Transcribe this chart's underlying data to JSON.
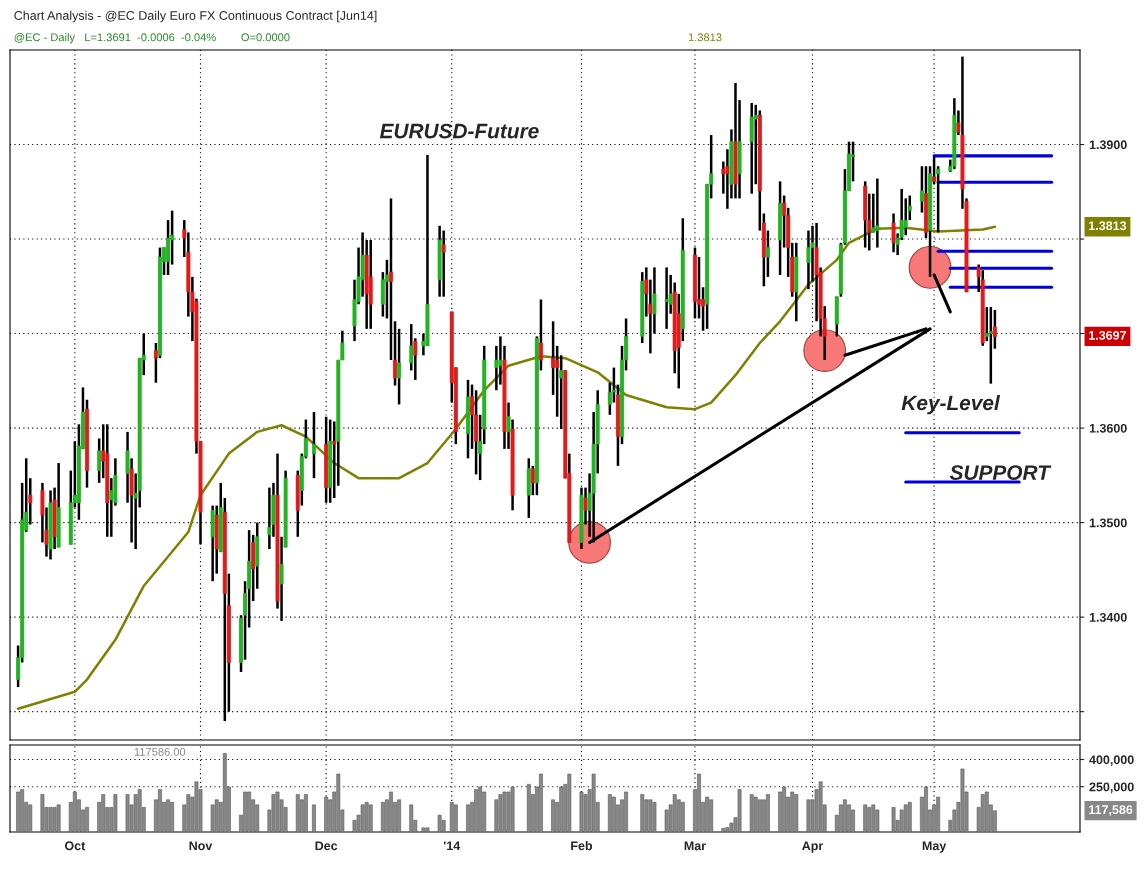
{
  "chart_data": [
    {
      "type": "candlestick",
      "title": "Chart Analysis - @EC Daily Euro FX Continuous Contract [Jun14]",
      "subtitle": "@EC - Daily   L=1.3691  -0.0006  -0.04%        O=0.0000",
      "x": [
        "2013-09-17",
        "2013-09-18",
        "2013-09-19",
        "2013-09-20",
        "2013-09-23",
        "2013-09-24",
        "2013-09-25",
        "2013-09-26",
        "2013-09-27",
        "2013-09-30",
        "2013-10-01",
        "2013-10-02",
        "2013-10-03",
        "2013-10-04",
        "2013-10-07",
        "2013-10-08",
        "2013-10-09",
        "2013-10-10",
        "2013-10-11",
        "2013-10-14",
        "2013-10-15",
        "2013-10-16",
        "2013-10-17",
        "2013-10-18",
        "2013-10-21",
        "2013-10-22",
        "2013-10-23",
        "2013-10-24",
        "2013-10-25",
        "2013-10-28",
        "2013-10-29",
        "2013-10-30",
        "2013-10-31",
        "2013-11-01",
        "2013-11-04",
        "2013-11-05",
        "2013-11-06",
        "2013-11-07",
        "2013-11-08",
        "2013-11-11",
        "2013-11-12",
        "2013-11-13",
        "2013-11-14",
        "2013-11-15",
        "2013-11-18",
        "2013-11-19",
        "2013-11-20",
        "2013-11-21",
        "2013-11-22",
        "2013-11-25",
        "2013-11-26",
        "2013-11-27",
        "2013-11-29",
        "2013-12-02",
        "2013-12-03",
        "2013-12-04",
        "2013-12-05",
        "2013-12-06",
        "2013-12-09",
        "2013-12-10",
        "2013-12-11",
        "2013-12-12",
        "2013-12-13",
        "2013-12-16",
        "2013-12-17",
        "2013-12-18",
        "2013-12-19",
        "2013-12-20",
        "2013-12-23",
        "2013-12-24",
        "2013-12-26",
        "2013-12-27",
        "2013-12-30",
        "2013-12-31",
        "2014-01-02",
        "2014-01-03",
        "2014-01-06",
        "2014-01-07",
        "2014-01-08",
        "2014-01-09",
        "2014-01-10",
        "2014-01-13",
        "2014-01-14",
        "2014-01-15",
        "2014-01-16",
        "2014-01-17",
        "2014-01-21",
        "2014-01-22",
        "2014-01-23",
        "2014-01-24",
        "2014-01-27",
        "2014-01-28",
        "2014-01-29",
        "2014-01-30",
        "2014-01-31",
        "2014-02-03",
        "2014-02-04",
        "2014-02-05",
        "2014-02-06",
        "2014-02-07",
        "2014-02-10",
        "2014-02-11",
        "2014-02-12",
        "2014-02-13",
        "2014-02-14",
        "2014-02-18",
        "2014-02-19",
        "2014-02-20",
        "2014-02-21",
        "2014-02-24",
        "2014-02-25",
        "2014-02-26",
        "2014-02-27",
        "2014-02-28",
        "2014-03-03",
        "2014-03-04",
        "2014-03-05",
        "2014-03-06",
        "2014-03-07",
        "2014-03-10",
        "2014-03-11",
        "2014-03-12",
        "2014-03-13",
        "2014-03-14",
        "2014-03-17",
        "2014-03-18",
        "2014-03-19",
        "2014-03-20",
        "2014-03-21",
        "2014-03-24",
        "2014-03-25",
        "2014-03-26",
        "2014-03-27",
        "2014-03-28",
        "2014-03-31",
        "2014-04-01",
        "2014-04-02",
        "2014-04-03",
        "2014-04-04",
        "2014-04-07",
        "2014-04-08",
        "2014-04-09",
        "2014-04-10",
        "2014-04-11",
        "2014-04-14",
        "2014-04-15",
        "2014-04-16",
        "2014-04-17",
        "2014-04-21",
        "2014-04-22",
        "2014-04-23",
        "2014-04-24",
        "2014-04-25",
        "2014-04-28",
        "2014-04-29",
        "2014-04-30",
        "2014-05-01",
        "2014-05-02",
        "2014-05-05",
        "2014-05-06",
        "2014-05-07",
        "2014-05-08",
        "2014-05-09",
        "2014-05-12",
        "2014-05-13",
        "2014-05-14",
        "2014-05-15",
        "2014-05-16"
      ],
      "ohlc": [
        [
          1.3334,
          1.337,
          1.3326,
          1.3357
        ],
        [
          1.3357,
          1.3542,
          1.3352,
          1.3503
        ],
        [
          1.3492,
          1.3568,
          1.349,
          1.3511
        ],
        [
          1.3529,
          1.3547,
          1.3498,
          1.3521
        ],
        [
          1.3534,
          1.3542,
          1.3479,
          1.3508
        ],
        [
          1.3492,
          1.3516,
          1.3464,
          1.3477
        ],
        [
          1.3472,
          1.3534,
          1.3461,
          1.3521
        ],
        [
          1.3524,
          1.3537,
          1.3472,
          1.3485
        ],
        [
          1.3474,
          1.3563,
          1.3474,
          1.3516
        ],
        [
          1.3477,
          1.3555,
          1.3477,
          1.3521
        ],
        [
          1.3521,
          1.3586,
          1.3516,
          1.3529
        ],
        [
          1.3521,
          1.3604,
          1.3503,
          1.3581
        ],
        [
          1.3578,
          1.3643,
          1.3578,
          1.3617
        ],
        [
          1.362,
          1.363,
          1.3537,
          1.3555
        ],
        [
          1.3555,
          1.3589,
          1.3542,
          1.3576
        ],
        [
          1.3576,
          1.3604,
          1.3547,
          1.3565
        ],
        [
          1.3573,
          1.3604,
          1.3485,
          1.3521
        ],
        [
          1.3524,
          1.3547,
          1.3485,
          1.3534
        ],
        [
          1.3521,
          1.3568,
          1.3518,
          1.355
        ],
        [
          1.3552,
          1.3596,
          1.3521,
          1.3576
        ],
        [
          1.3557,
          1.3568,
          1.3479,
          1.3529
        ],
        [
          1.3526,
          1.3552,
          1.3472,
          1.3531
        ],
        [
          1.3534,
          1.3674,
          1.3516,
          1.3674
        ],
        [
          1.3672,
          1.37,
          1.3656,
          1.3677
        ],
        [
          1.3682,
          1.369,
          1.3648,
          1.3674
        ],
        [
          1.3677,
          1.3791,
          1.3674,
          1.3781
        ],
        [
          1.3776,
          1.3791,
          1.3762,
          1.3791
        ],
        [
          1.3776,
          1.382,
          1.3762,
          1.3801
        ],
        [
          1.3799,
          1.383,
          1.3773,
          1.3804
        ],
        [
          1.381,
          1.382,
          1.3781,
          1.3801
        ],
        [
          1.3786,
          1.3807,
          1.3718,
          1.3744
        ],
        [
          1.3744,
          1.376,
          1.3692,
          1.3723
        ],
        [
          1.3734,
          1.3737,
          1.3573,
          1.3586
        ],
        [
          1.3586,
          1.3586,
          1.3477,
          1.3511
        ],
        [
          1.3485,
          1.3518,
          1.3438,
          1.3513
        ],
        [
          1.3508,
          1.3518,
          1.3446,
          1.3472
        ],
        [
          1.3469,
          1.3542,
          1.3469,
          1.3516
        ],
        [
          1.3511,
          1.3526,
          1.329,
          1.3425
        ],
        [
          1.3412,
          1.3446,
          1.33,
          1.3352
        ],
        [
          1.3352,
          1.3402,
          1.3342,
          1.3399
        ],
        [
          1.3402,
          1.3438,
          1.3355,
          1.3425
        ],
        [
          1.343,
          1.3492,
          1.3389,
          1.3459
        ],
        [
          1.3479,
          1.3487,
          1.3417,
          1.3451
        ],
        [
          1.3454,
          1.35,
          1.343,
          1.3485
        ],
        [
          1.3487,
          1.3537,
          1.3472,
          1.3495
        ],
        [
          1.3498,
          1.3542,
          1.3485,
          1.3529
        ],
        [
          1.3529,
          1.3573,
          1.3409,
          1.3417
        ],
        [
          1.3435,
          1.3485,
          1.3396,
          1.3456
        ],
        [
          1.3474,
          1.3555,
          1.3474,
          1.3547
        ],
        [
          1.355,
          1.3555,
          1.3485,
          1.3513
        ],
        [
          1.3534,
          1.3573,
          1.3518,
          1.357
        ],
        [
          1.357,
          1.3609,
          1.3568,
          1.3589
        ],
        [
          1.3573,
          1.3617,
          1.3547,
          1.3583
        ],
        [
          1.3583,
          1.3612,
          1.3521,
          1.3537
        ],
        [
          1.3537,
          1.3609,
          1.3521,
          1.3586
        ],
        [
          1.3586,
          1.3607,
          1.3526,
          1.3583
        ],
        [
          1.3586,
          1.3672,
          1.3539,
          1.3672
        ],
        [
          1.3672,
          1.3703,
          1.3672,
          1.369
        ],
        [
          1.3708,
          1.3757,
          1.3692,
          1.3736
        ],
        [
          1.3734,
          1.3791,
          1.3731,
          1.376
        ],
        [
          1.3757,
          1.3807,
          1.3739,
          1.3783
        ],
        [
          1.3783,
          1.3799,
          1.3705,
          1.3742
        ],
        [
          1.376,
          1.3799,
          1.3705,
          1.3731
        ],
        [
          1.3731,
          1.3765,
          1.3718,
          1.3757
        ],
        [
          1.3755,
          1.3778,
          1.3716,
          1.3762
        ],
        [
          1.3765,
          1.3843,
          1.3672,
          1.3755
        ],
        [
          1.3672,
          1.3713,
          1.3645,
          1.3653
        ],
        [
          1.3653,
          1.3705,
          1.3625,
          1.3669
        ],
        [
          1.3669,
          1.371,
          1.3661,
          1.3687
        ],
        [
          1.3692,
          1.3695,
          1.3651,
          1.3677
        ],
        [
          1.3687,
          1.37,
          1.3677,
          1.3692
        ],
        [
          1.3687,
          1.3889,
          1.3687,
          1.3731
        ],
        [
          1.3757,
          1.3814,
          1.3739,
          1.3799
        ],
        [
          1.3794,
          1.3809,
          1.3739,
          1.3786
        ],
        [
          1.3723,
          1.3723,
          1.3627,
          1.3648
        ],
        [
          1.3664,
          1.3664,
          1.3583,
          1.3596
        ],
        [
          1.3594,
          1.3651,
          1.3568,
          1.3633
        ],
        [
          1.3633,
          1.3646,
          1.3578,
          1.3614
        ],
        [
          1.3614,
          1.364,
          1.3551,
          1.3586
        ],
        [
          1.3573,
          1.3614,
          1.3545,
          1.3586
        ],
        [
          1.3599,
          1.3687,
          1.3583,
          1.3672
        ],
        [
          1.3664,
          1.3687,
          1.364,
          1.3672
        ],
        [
          1.3666,
          1.3697,
          1.3646,
          1.3672
        ],
        [
          1.3672,
          1.3687,
          1.3578,
          1.3596
        ],
        [
          1.3596,
          1.3627,
          1.3578,
          1.3612
        ],
        [
          1.3599,
          1.3609,
          1.3513,
          1.3529
        ],
        [
          1.3529,
          1.3568,
          1.3505,
          1.3557
        ],
        [
          1.3557,
          1.356,
          1.3529,
          1.3542
        ],
        [
          1.3542,
          1.3697,
          1.3529,
          1.3695
        ],
        [
          1.369,
          1.3736,
          1.3661,
          1.3672
        ],
        [
          1.3674,
          1.3713,
          1.3635,
          1.3664
        ],
        [
          1.3672,
          1.3687,
          1.3612,
          1.3664
        ],
        [
          1.3653,
          1.3677,
          1.3599,
          1.3661
        ],
        [
          1.3661,
          1.3661,
          1.3547,
          1.3547
        ],
        [
          1.3552,
          1.3573,
          1.3479,
          1.3479
        ],
        [
          1.3479,
          1.3537,
          1.3472,
          1.3529
        ],
        [
          1.3526,
          1.3537,
          1.3498,
          1.3513
        ],
        [
          1.3513,
          1.3552,
          1.3485,
          1.3531
        ],
        [
          1.3531,
          1.3617,
          1.3479,
          1.3583
        ],
        [
          1.3583,
          1.364,
          1.3552,
          1.3625
        ],
        [
          1.3625,
          1.3648,
          1.3614,
          1.3638
        ],
        [
          1.3638,
          1.3664,
          1.3627,
          1.364
        ],
        [
          1.3635,
          1.3646,
          1.356,
          1.3591
        ],
        [
          1.3591,
          1.3687,
          1.3583,
          1.3672
        ],
        [
          1.3672,
          1.3716,
          1.3661,
          1.3697
        ],
        [
          1.3697,
          1.3765,
          1.369,
          1.3755
        ],
        [
          1.3757,
          1.377,
          1.3718,
          1.3742
        ],
        [
          1.3731,
          1.3757,
          1.3679,
          1.3721
        ],
        [
          1.3721,
          1.377,
          1.37,
          1.3742
        ],
        [
          1.3734,
          1.377,
          1.3705,
          1.3736
        ],
        [
          1.3731,
          1.3762,
          1.3721,
          1.3742
        ],
        [
          1.3744,
          1.3754,
          1.3658,
          1.3682
        ],
        [
          1.3721,
          1.3742,
          1.3642,
          1.3685
        ],
        [
          1.3705,
          1.3822,
          1.3692,
          1.3788
        ],
        [
          1.3783,
          1.3791,
          1.3716,
          1.3734
        ],
        [
          1.3736,
          1.3781,
          1.3716,
          1.3731
        ],
        [
          1.3736,
          1.3749,
          1.3703,
          1.3729
        ],
        [
          1.3731,
          1.3858,
          1.3705,
          1.3858
        ],
        [
          1.3858,
          1.391,
          1.3843,
          1.3869
        ],
        [
          1.3874,
          1.3882,
          1.3848,
          1.3869
        ],
        [
          1.3877,
          1.3895,
          1.3832,
          1.3869
        ],
        [
          1.3858,
          1.3916,
          1.3843,
          1.3903
        ],
        [
          1.3903,
          1.3965,
          1.3843,
          1.3858
        ],
        [
          1.3869,
          1.3947,
          1.3843,
          1.3903
        ],
        [
          1.3903,
          1.3944,
          1.3848,
          1.3929
        ],
        [
          1.3927,
          1.3942,
          1.3858,
          1.3931
        ],
        [
          1.3931,
          1.3936,
          1.3809,
          1.3851
        ],
        [
          1.3817,
          1.3827,
          1.375,
          1.3781
        ],
        [
          1.3781,
          1.3809,
          1.376,
          1.3791
        ],
        [
          1.3799,
          1.3861,
          1.3762,
          1.3838
        ],
        [
          1.3838,
          1.3846,
          1.3791,
          1.3825
        ],
        [
          1.3825,
          1.3833,
          1.376,
          1.3791
        ],
        [
          1.3781,
          1.3796,
          1.3739,
          1.3744
        ],
        [
          1.3744,
          1.3796,
          1.3713,
          1.3781
        ],
        [
          1.3775,
          1.3809,
          1.3747,
          1.3791
        ],
        [
          1.3791,
          1.3814,
          1.3755,
          1.3796
        ],
        [
          1.3791,
          1.3817,
          1.3713,
          1.3762
        ],
        [
          1.3765,
          1.377,
          1.3697,
          1.3716
        ],
        [
          1.3716,
          1.3729,
          1.3672,
          1.3697
        ],
        [
          1.371,
          1.3739,
          1.3697,
          1.3739
        ],
        [
          1.3742,
          1.3796,
          1.3739,
          1.3794
        ],
        [
          1.3796,
          1.3874,
          1.3794,
          1.3851
        ],
        [
          1.3851,
          1.3903,
          1.3851,
          1.389
        ],
        [
          1.3887,
          1.3903,
          1.3861,
          1.3889
        ],
        [
          1.3856,
          1.3861,
          1.3791,
          1.382
        ],
        [
          1.382,
          1.3848,
          1.3788,
          1.3807
        ],
        [
          1.3807,
          1.3848,
          1.3807,
          1.3812
        ],
        [
          1.3809,
          1.3864,
          1.3791,
          1.3814
        ],
        [
          1.3817,
          1.3827,
          1.3786,
          1.3796
        ],
        [
          1.3794,
          1.3806,
          1.3783,
          1.3801
        ],
        [
          1.3802,
          1.3853,
          1.3799,
          1.382
        ],
        [
          1.3812,
          1.3843,
          1.3804,
          1.382
        ],
        [
          1.383,
          1.3846,
          1.382,
          1.3835
        ],
        [
          1.384,
          1.3877,
          1.3828,
          1.3851
        ],
        [
          1.3848,
          1.3877,
          1.3801,
          1.3807
        ],
        [
          1.3809,
          1.3877,
          1.376,
          1.3869
        ],
        [
          1.3866,
          1.3887,
          1.3858,
          1.3861
        ],
        [
          1.3869,
          1.3877,
          1.3807,
          1.3874
        ],
        [
          1.3872,
          1.3884,
          1.3871,
          1.3877
        ],
        [
          1.3877,
          1.3949,
          1.3874,
          1.3931
        ],
        [
          1.3923,
          1.3936,
          1.391,
          1.3913
        ],
        [
          1.391,
          1.3993,
          1.3832,
          1.3853
        ],
        [
          1.384,
          1.3843,
          1.3744,
          1.3744
        ],
        [
          1.377,
          1.3773,
          1.3744,
          1.376
        ],
        [
          1.3757,
          1.3767,
          1.3687,
          1.369
        ],
        [
          1.3697,
          1.3728,
          1.3692,
          1.37
        ],
        [
          1.37,
          1.3728,
          1.3647,
          1.3702
        ],
        [
          1.3707,
          1.3725,
          1.3684,
          1.3697
        ]
      ],
      "series": [
        {
          "type": "line",
          "color": "#808000",
          "x": [
            "2013-09-17",
            "2013-10-01",
            "2013-10-04",
            "2013-10-11",
            "2013-10-18",
            "2013-10-29",
            "2013-11-01",
            "2013-11-08",
            "2013-11-15",
            "2013-11-21",
            "2013-11-27",
            "2013-12-04",
            "2013-12-10",
            "2013-12-20",
            "2013-12-27",
            "2014-01-03",
            "2014-01-10",
            "2014-01-16",
            "2014-01-24",
            "2014-01-30",
            "2014-02-07",
            "2014-02-14",
            "2014-02-24",
            "2014-03-03",
            "2014-03-07",
            "2014-03-13",
            "2014-03-19",
            "2014-03-24",
            "2014-03-31",
            "2014-04-07",
            "2014-04-10",
            "2014-04-17",
            "2014-04-24",
            "2014-05-02",
            "2014-05-13",
            "2014-05-16"
          ],
          "values": [
            1.3303,
            1.3321,
            1.3334,
            1.3376,
            1.3433,
            1.349,
            1.3529,
            1.3573,
            1.3596,
            1.3603,
            1.3591,
            1.3563,
            1.3547,
            1.3547,
            1.3563,
            1.3599,
            1.364,
            1.3666,
            1.3676,
            1.3674,
            1.3659,
            1.3635,
            1.3622,
            1.362,
            1.3627,
            1.3656,
            1.369,
            1.3713,
            1.3752,
            1.3778,
            1.3796,
            1.3811,
            1.3812,
            1.3808,
            1.381,
            1.3813
          ]
        },
        {
          "type": "line",
          "color": "#0000dd",
          "x": [
            "2014-05-01",
            "2014-05-30"
          ],
          "values": [
            1.3888,
            1.3888
          ]
        },
        {
          "type": "line",
          "color": "#0000dd",
          "x": [
            "2014-05-02",
            "2014-05-30"
          ],
          "values": [
            1.386,
            1.386
          ]
        },
        {
          "type": "line",
          "color": "#0000dd",
          "x": [
            "2014-05-02",
            "2014-05-30"
          ],
          "values": [
            1.3787,
            1.3787
          ]
        },
        {
          "type": "line",
          "color": "#0000dd",
          "x": [
            "2014-05-05",
            "2014-05-30"
          ],
          "values": [
            1.3769,
            1.3769
          ]
        },
        {
          "type": "line",
          "color": "#0000dd",
          "x": [
            "2014-05-05",
            "2014-05-30"
          ],
          "values": [
            1.3749,
            1.3749
          ]
        },
        {
          "type": "line",
          "color": "#0000dd",
          "x": [
            "2014-04-24",
            "2014-05-22"
          ],
          "values": [
            1.3595,
            1.3595
          ]
        },
        {
          "type": "line",
          "color": "#0000dd",
          "x": [
            "2014-04-24",
            "2014-05-22"
          ],
          "values": [
            1.3543,
            1.3543
          ]
        },
        {
          "type": "line",
          "color": "#000000",
          "x": [
            "2014-02-05",
            "2014-04-30"
          ],
          "values": [
            1.3479,
            1.3705
          ]
        },
        {
          "type": "line",
          "color": "#000000",
          "x": [
            "2014-04-09",
            "2014-04-29"
          ],
          "values": [
            1.3677,
            1.3705
          ]
        },
        {
          "type": "line",
          "color": "#000000",
          "x": [
            "2014-05-01",
            "2014-05-05"
          ],
          "values": [
            1.3762,
            1.3723
          ]
        },
        {
          "type": "scatter",
          "color": "#f87878",
          "x": [
            "2014-02-05",
            "2014-04-04",
            "2014-04-30"
          ],
          "values": [
            1.3479,
            1.3682,
            1.377
          ]
        }
      ],
      "xlim": [
        "2013-09-15",
        "2014-06-06"
      ],
      "xticks": [
        {
          "value": "2013-10-01",
          "label": null
        },
        {
          "value": "2013-11-01",
          "label": null
        },
        {
          "value": "2013-12-02",
          "label": null
        },
        {
          "value": "2014-01-02",
          "label": null
        },
        {
          "value": "2014-02-03",
          "label": null
        },
        {
          "value": "2014-03-03",
          "label": null
        },
        {
          "value": "2014-04-01",
          "label": null
        },
        {
          "value": "2014-05-01",
          "label": null
        }
      ],
      "ylim": [
        1.327,
        1.4
      ],
      "yticks": [
        {
          "value": 1.33,
          "label": null
        },
        {
          "value": 1.34,
          "label": "1.3400"
        },
        {
          "value": 1.35,
          "label": "1.3500"
        },
        {
          "value": 1.36,
          "label": "1.3600"
        },
        {
          "value": 1.37,
          "label": null
        },
        {
          "value": 1.38,
          "label": null
        },
        {
          "value": 1.39,
          "label": "1.3900"
        }
      ],
      "tick_labels": "y",
      "grid": true,
      "annotations": [
        "EURUSD-Future",
        "1.3813",
        "Key-Level",
        "SUPPORT",
        "1.3697",
        "1.3813"
      ]
    },
    {
      "type": "bar",
      "color": "#888888",
      "x": [
        "2013-09-17",
        "2013-09-18",
        "2013-09-19",
        "2013-09-20",
        "2013-09-23",
        "2013-09-24",
        "2013-09-25",
        "2013-09-26",
        "2013-09-27",
        "2013-09-30",
        "2013-10-01",
        "2013-10-02",
        "2013-10-03",
        "2013-10-04",
        "2013-10-07",
        "2013-10-08",
        "2013-10-09",
        "2013-10-10",
        "2013-10-11",
        "2013-10-14",
        "2013-10-15",
        "2013-10-16",
        "2013-10-17",
        "2013-10-18",
        "2013-10-21",
        "2013-10-22",
        "2013-10-23",
        "2013-10-24",
        "2013-10-25",
        "2013-10-28",
        "2013-10-29",
        "2013-10-30",
        "2013-10-31",
        "2013-11-01",
        "2013-11-04",
        "2013-11-05",
        "2013-11-06",
        "2013-11-07",
        "2013-11-08",
        "2013-11-11",
        "2013-11-12",
        "2013-11-13",
        "2013-11-14",
        "2013-11-15",
        "2013-11-18",
        "2013-11-19",
        "2013-11-20",
        "2013-11-21",
        "2013-11-22",
        "2013-11-25",
        "2013-11-26",
        "2013-11-27",
        "2013-11-29",
        "2013-12-02",
        "2013-12-03",
        "2013-12-04",
        "2013-12-05",
        "2013-12-06",
        "2013-12-09",
        "2013-12-10",
        "2013-12-11",
        "2013-12-12",
        "2013-12-13",
        "2013-12-16",
        "2013-12-17",
        "2013-12-18",
        "2013-12-19",
        "2013-12-20",
        "2013-12-23",
        "2013-12-24",
        "2013-12-26",
        "2013-12-27",
        "2013-12-30",
        "2013-12-31",
        "2014-01-02",
        "2014-01-03",
        "2014-01-06",
        "2014-01-07",
        "2014-01-08",
        "2014-01-09",
        "2014-01-10",
        "2014-01-13",
        "2014-01-14",
        "2014-01-15",
        "2014-01-16",
        "2014-01-17",
        "2014-01-21",
        "2014-01-22",
        "2014-01-23",
        "2014-01-24",
        "2014-01-27",
        "2014-01-28",
        "2014-01-29",
        "2014-01-30",
        "2014-01-31",
        "2014-02-03",
        "2014-02-04",
        "2014-02-05",
        "2014-02-06",
        "2014-02-07",
        "2014-02-10",
        "2014-02-11",
        "2014-02-12",
        "2014-02-13",
        "2014-02-14",
        "2014-02-18",
        "2014-02-19",
        "2014-02-20",
        "2014-02-21",
        "2014-02-24",
        "2014-02-25",
        "2014-02-26",
        "2014-02-27",
        "2014-02-28",
        "2014-03-03",
        "2014-03-04",
        "2014-03-05",
        "2014-03-06",
        "2014-03-07",
        "2014-03-10",
        "2014-03-11",
        "2014-03-12",
        "2014-03-13",
        "2014-03-14",
        "2014-03-17",
        "2014-03-18",
        "2014-03-19",
        "2014-03-20",
        "2014-03-21",
        "2014-03-24",
        "2014-03-25",
        "2014-03-26",
        "2014-03-27",
        "2014-03-28",
        "2014-03-31",
        "2014-04-01",
        "2014-04-02",
        "2014-04-03",
        "2014-04-04",
        "2014-04-07",
        "2014-04-08",
        "2014-04-09",
        "2014-04-10",
        "2014-04-11",
        "2014-04-14",
        "2014-04-15",
        "2014-04-16",
        "2014-04-17",
        "2014-04-21",
        "2014-04-22",
        "2014-04-23",
        "2014-04-24",
        "2014-04-25",
        "2014-04-28",
        "2014-04-29",
        "2014-04-30",
        "2014-05-01",
        "2014-05-02",
        "2014-05-05",
        "2014-05-06",
        "2014-05-07",
        "2014-05-08",
        "2014-05-09",
        "2014-05-12",
        "2014-05-13",
        "2014-05-14",
        "2014-05-15",
        "2014-05-16"
      ],
      "values": [
        221000,
        235000,
        164000,
        150000,
        207000,
        136000,
        136000,
        136000,
        150000,
        164000,
        221000,
        178000,
        122000,
        136000,
        164000,
        207000,
        136000,
        136000,
        207000,
        207000,
        150000,
        207000,
        235000,
        136000,
        178000,
        235000,
        164000,
        178000,
        164000,
        150000,
        207000,
        193000,
        277000,
        235000,
        150000,
        178000,
        164000,
        433000,
        249000,
        93000,
        221000,
        221000,
        178000,
        150000,
        122000,
        207000,
        221000,
        178000,
        136000,
        207000,
        178000,
        207000,
        150000,
        193000,
        178000,
        221000,
        320000,
        122000,
        65000,
        93000,
        150000,
        164000,
        150000,
        164000,
        178000,
        221000,
        164000,
        178000,
        150000,
        65000,
        23000,
        23000,
        93000,
        65000,
        164000,
        150000,
        150000,
        164000,
        235000,
        249000,
        221000,
        178000,
        207000,
        221000,
        221000,
        249000,
        263000,
        207000,
        249000,
        320000,
        178000,
        164000,
        249000,
        263000,
        320000,
        221000,
        207000,
        235000,
        320000,
        164000,
        207000,
        193000,
        150000,
        178000,
        221000,
        207000,
        178000,
        178000,
        164000,
        122000,
        150000,
        207000,
        178000,
        164000,
        235000,
        320000,
        164000,
        193000,
        178000,
        20000,
        25000,
        50000,
        80000,
        235000,
        207000,
        193000,
        178000,
        178000,
        207000,
        221000,
        249000,
        193000,
        221000,
        207000,
        178000,
        178000,
        235000,
        277000,
        150000,
        93000,
        150000,
        178000,
        150000,
        122000,
        150000,
        136000,
        150000,
        122000,
        136000,
        65000,
        122000,
        150000,
        164000,
        193000,
        249000,
        122000,
        150000,
        193000,
        65000,
        122000,
        164000,
        348000,
        221000,
        136000,
        207000,
        221000,
        150000,
        117586
      ],
      "xlim": [
        "2013-09-15",
        "2014-06-06"
      ],
      "xticks": [
        {
          "value": "2013-10-01",
          "label": "Oct"
        },
        {
          "value": "2013-11-01",
          "label": "Nov"
        },
        {
          "value": "2013-12-02",
          "label": "Dec"
        },
        {
          "value": "2014-01-02",
          "label": "'14"
        },
        {
          "value": "2014-02-03",
          "label": "Feb"
        },
        {
          "value": "2014-03-03",
          "label": "Mar"
        },
        {
          "value": "2014-04-01",
          "label": "Apr"
        },
        {
          "value": "2014-05-01",
          "label": "May"
        }
      ],
      "ylim": [
        0,
        480000
      ],
      "yticks": [
        {
          "value": 250000,
          "label": "250,000"
        },
        {
          "value": 400000,
          "label": "400,000"
        }
      ],
      "grid": true,
      "annotations": [
        "117586.00",
        "117,586"
      ]
    }
  ]
}
